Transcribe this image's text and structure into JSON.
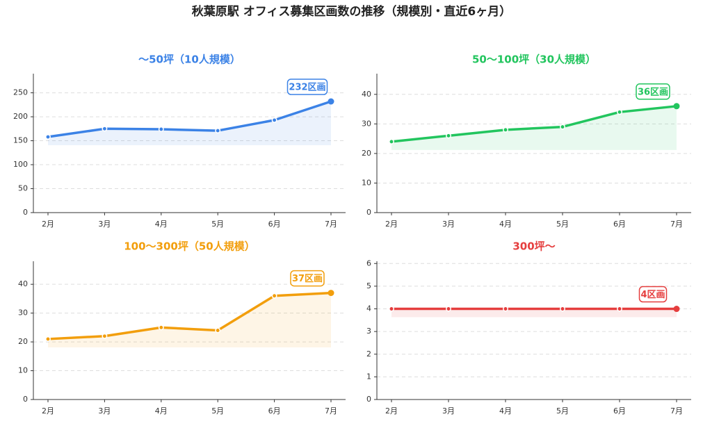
{
  "title": "秋葉原駅 オフィス募集区画数の推移（規模別・直近6ヶ月）",
  "chart_data": [
    {
      "type": "line",
      "title": "〜50坪（10人規模）",
      "color": "#3b82e6",
      "categories": [
        "2月",
        "3月",
        "4月",
        "5月",
        "6月",
        "7月"
      ],
      "values": [
        158,
        175,
        174,
        171,
        193,
        232
      ],
      "yticks": [
        0,
        50,
        100,
        150,
        200,
        250
      ],
      "ylim": [
        0,
        290
      ],
      "last_label": "232区画",
      "grid": true
    },
    {
      "type": "line",
      "title": "50〜100坪（30人規模）",
      "color": "#22c55e",
      "categories": [
        "2月",
        "3月",
        "4月",
        "5月",
        "6月",
        "7月"
      ],
      "values": [
        24,
        26,
        28,
        29,
        34,
        36
      ],
      "yticks": [
        0,
        10,
        20,
        30,
        40
      ],
      "ylim": [
        0,
        47
      ],
      "last_label": "36区画",
      "grid": true
    },
    {
      "type": "line",
      "title": "100〜300坪（50人規模）",
      "color": "#f29e0c",
      "categories": [
        "2月",
        "3月",
        "4月",
        "5月",
        "6月",
        "7月"
      ],
      "values": [
        21,
        22,
        25,
        24,
        36,
        37
      ],
      "yticks": [
        0,
        10,
        20,
        30,
        40
      ],
      "ylim": [
        0,
        48
      ],
      "last_label": "37区画",
      "grid": true
    },
    {
      "type": "line",
      "title": "300坪〜",
      "color": "#e53e3e",
      "categories": [
        "2月",
        "3月",
        "4月",
        "5月",
        "6月",
        "7月"
      ],
      "values": [
        4,
        4,
        4,
        4,
        4,
        4
      ],
      "yticks": [
        0,
        1,
        2,
        3,
        4,
        5,
        6
      ],
      "ylim": [
        0,
        6.1
      ],
      "last_label": "4区画",
      "grid": true
    }
  ]
}
